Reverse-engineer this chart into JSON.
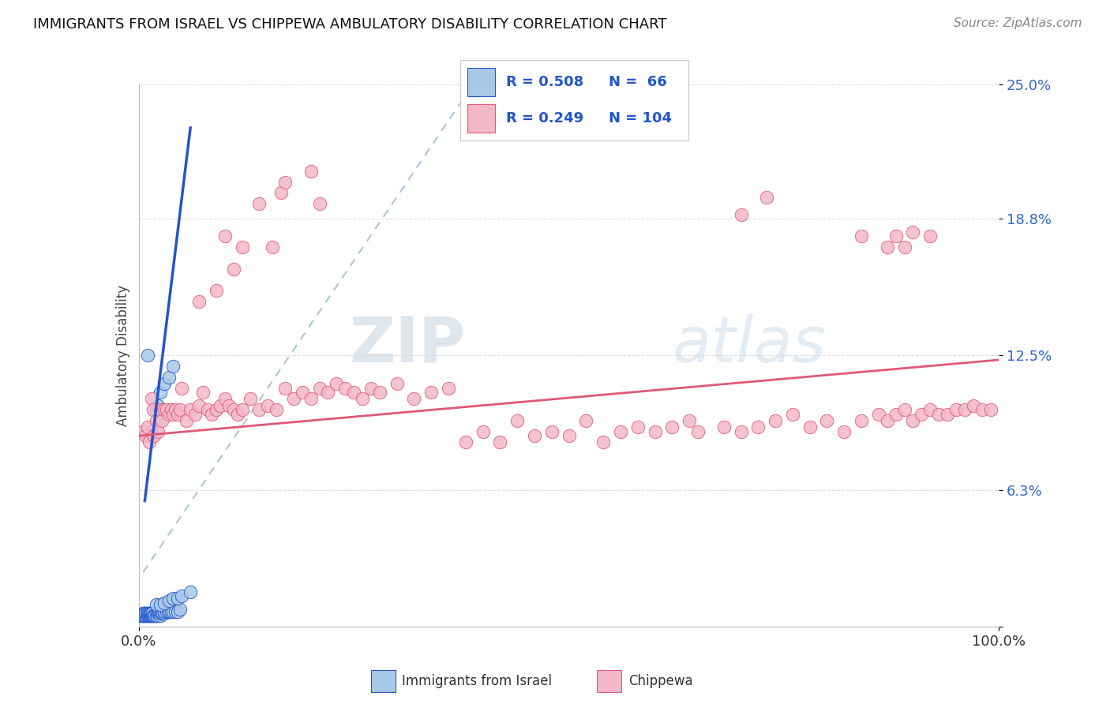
{
  "title": "IMMIGRANTS FROM ISRAEL VS CHIPPEWA AMBULATORY DISABILITY CORRELATION CHART",
  "source_text": "Source: ZipAtlas.com",
  "ylabel": "Ambulatory Disability",
  "xmin": 0.0,
  "xmax": 1.0,
  "ymin": 0.0,
  "ymax": 0.25,
  "color_blue": "#a8c8e8",
  "color_pink": "#f4b8c8",
  "trendline_blue_color": "#2255cc",
  "trendline_pink_color": "#e05878",
  "trendline_diag_color": "#aac4e0",
  "watermark_zip": "ZIP",
  "watermark_atlas": "atlas",
  "blue_scatter": [
    [
      0.002,
      0.005
    ],
    [
      0.003,
      0.005
    ],
    [
      0.004,
      0.005
    ],
    [
      0.005,
      0.005
    ],
    [
      0.005,
      0.006
    ],
    [
      0.006,
      0.005
    ],
    [
      0.006,
      0.006
    ],
    [
      0.007,
      0.005
    ],
    [
      0.007,
      0.006
    ],
    [
      0.008,
      0.005
    ],
    [
      0.008,
      0.006
    ],
    [
      0.009,
      0.005
    ],
    [
      0.009,
      0.006
    ],
    [
      0.01,
      0.005
    ],
    [
      0.01,
      0.006
    ],
    [
      0.011,
      0.005
    ],
    [
      0.011,
      0.006
    ],
    [
      0.012,
      0.005
    ],
    [
      0.012,
      0.006
    ],
    [
      0.013,
      0.005
    ],
    [
      0.013,
      0.006
    ],
    [
      0.014,
      0.005
    ],
    [
      0.014,
      0.006
    ],
    [
      0.015,
      0.005
    ],
    [
      0.015,
      0.006
    ],
    [
      0.016,
      0.005
    ],
    [
      0.016,
      0.006
    ],
    [
      0.017,
      0.005
    ],
    [
      0.018,
      0.005
    ],
    [
      0.019,
      0.005
    ],
    [
      0.02,
      0.005
    ],
    [
      0.021,
      0.005
    ],
    [
      0.022,
      0.006
    ],
    [
      0.023,
      0.006
    ],
    [
      0.024,
      0.006
    ],
    [
      0.025,
      0.005
    ],
    [
      0.026,
      0.006
    ],
    [
      0.027,
      0.006
    ],
    [
      0.028,
      0.006
    ],
    [
      0.03,
      0.006
    ],
    [
      0.03,
      0.007
    ],
    [
      0.032,
      0.007
    ],
    [
      0.034,
      0.007
    ],
    [
      0.036,
      0.007
    ],
    [
      0.038,
      0.007
    ],
    [
      0.04,
      0.007
    ],
    [
      0.042,
      0.007
    ],
    [
      0.045,
      0.007
    ],
    [
      0.048,
      0.008
    ],
    [
      0.02,
      0.01
    ],
    [
      0.025,
      0.01
    ],
    [
      0.03,
      0.011
    ],
    [
      0.035,
      0.012
    ],
    [
      0.04,
      0.013
    ],
    [
      0.045,
      0.013
    ],
    [
      0.05,
      0.014
    ],
    [
      0.06,
      0.016
    ],
    [
      0.015,
      0.09
    ],
    [
      0.02,
      0.1
    ],
    [
      0.022,
      0.102
    ],
    [
      0.025,
      0.108
    ],
    [
      0.03,
      0.112
    ],
    [
      0.035,
      0.115
    ],
    [
      0.01,
      0.125
    ],
    [
      0.04,
      0.12
    ]
  ],
  "pink_scatter": [
    [
      0.005,
      0.09
    ],
    [
      0.008,
      0.088
    ],
    [
      0.01,
      0.092
    ],
    [
      0.012,
      0.085
    ],
    [
      0.015,
      0.105
    ],
    [
      0.017,
      0.1
    ],
    [
      0.018,
      0.088
    ],
    [
      0.02,
      0.095
    ],
    [
      0.022,
      0.09
    ],
    [
      0.025,
      0.1
    ],
    [
      0.027,
      0.095
    ],
    [
      0.03,
      0.1
    ],
    [
      0.032,
      0.1
    ],
    [
      0.035,
      0.098
    ],
    [
      0.038,
      0.1
    ],
    [
      0.04,
      0.098
    ],
    [
      0.042,
      0.1
    ],
    [
      0.045,
      0.098
    ],
    [
      0.048,
      0.1
    ],
    [
      0.05,
      0.11
    ],
    [
      0.055,
      0.095
    ],
    [
      0.06,
      0.1
    ],
    [
      0.065,
      0.098
    ],
    [
      0.07,
      0.102
    ],
    [
      0.075,
      0.108
    ],
    [
      0.08,
      0.1
    ],
    [
      0.085,
      0.098
    ],
    [
      0.09,
      0.1
    ],
    [
      0.095,
      0.102
    ],
    [
      0.1,
      0.105
    ],
    [
      0.105,
      0.102
    ],
    [
      0.11,
      0.1
    ],
    [
      0.115,
      0.098
    ],
    [
      0.12,
      0.1
    ],
    [
      0.13,
      0.105
    ],
    [
      0.14,
      0.1
    ],
    [
      0.15,
      0.102
    ],
    [
      0.16,
      0.1
    ],
    [
      0.17,
      0.11
    ],
    [
      0.18,
      0.105
    ],
    [
      0.19,
      0.108
    ],
    [
      0.2,
      0.105
    ],
    [
      0.21,
      0.11
    ],
    [
      0.22,
      0.108
    ],
    [
      0.23,
      0.112
    ],
    [
      0.24,
      0.11
    ],
    [
      0.25,
      0.108
    ],
    [
      0.26,
      0.105
    ],
    [
      0.27,
      0.11
    ],
    [
      0.28,
      0.108
    ],
    [
      0.3,
      0.112
    ],
    [
      0.32,
      0.105
    ],
    [
      0.34,
      0.108
    ],
    [
      0.36,
      0.11
    ],
    [
      0.38,
      0.085
    ],
    [
      0.4,
      0.09
    ],
    [
      0.42,
      0.085
    ],
    [
      0.44,
      0.095
    ],
    [
      0.46,
      0.088
    ],
    [
      0.48,
      0.09
    ],
    [
      0.5,
      0.088
    ],
    [
      0.52,
      0.095
    ],
    [
      0.54,
      0.085
    ],
    [
      0.56,
      0.09
    ],
    [
      0.58,
      0.092
    ],
    [
      0.6,
      0.09
    ],
    [
      0.62,
      0.092
    ],
    [
      0.64,
      0.095
    ],
    [
      0.65,
      0.09
    ],
    [
      0.68,
      0.092
    ],
    [
      0.7,
      0.09
    ],
    [
      0.72,
      0.092
    ],
    [
      0.74,
      0.095
    ],
    [
      0.76,
      0.098
    ],
    [
      0.78,
      0.092
    ],
    [
      0.8,
      0.095
    ],
    [
      0.82,
      0.09
    ],
    [
      0.84,
      0.095
    ],
    [
      0.86,
      0.098
    ],
    [
      0.87,
      0.095
    ],
    [
      0.88,
      0.098
    ],
    [
      0.89,
      0.1
    ],
    [
      0.9,
      0.095
    ],
    [
      0.91,
      0.098
    ],
    [
      0.92,
      0.1
    ],
    [
      0.93,
      0.098
    ],
    [
      0.94,
      0.098
    ],
    [
      0.95,
      0.1
    ],
    [
      0.96,
      0.1
    ],
    [
      0.97,
      0.102
    ],
    [
      0.98,
      0.1
    ],
    [
      0.99,
      0.1
    ],
    [
      0.07,
      0.15
    ],
    [
      0.09,
      0.155
    ],
    [
      0.1,
      0.18
    ],
    [
      0.11,
      0.165
    ],
    [
      0.12,
      0.175
    ],
    [
      0.14,
      0.195
    ],
    [
      0.155,
      0.175
    ],
    [
      0.165,
      0.2
    ],
    [
      0.17,
      0.205
    ],
    [
      0.2,
      0.21
    ],
    [
      0.21,
      0.195
    ],
    [
      0.7,
      0.19
    ],
    [
      0.73,
      0.198
    ],
    [
      0.84,
      0.18
    ],
    [
      0.87,
      0.175
    ],
    [
      0.88,
      0.18
    ],
    [
      0.89,
      0.175
    ],
    [
      0.9,
      0.182
    ],
    [
      0.92,
      0.18
    ]
  ],
  "blue_trendline": [
    [
      0.007,
      0.058
    ],
    [
      0.06,
      0.23
    ]
  ],
  "pink_trendline": [
    [
      0.0,
      0.088
    ],
    [
      1.0,
      0.123
    ]
  ],
  "diag_line": [
    [
      0.005,
      0.025
    ],
    [
      0.38,
      0.245
    ]
  ]
}
